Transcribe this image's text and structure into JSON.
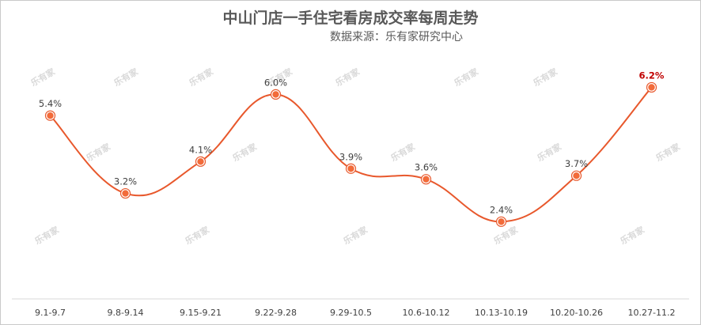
{
  "title": "中山门店一手住宅看房成交率每周走势",
  "subtitle": "数据来源：乐有家研究中心",
  "watermark": "乐有家",
  "colors": {
    "line": "#e8582c",
    "marker_fill": "#f26b3a",
    "highlight_label": "#c00000"
  },
  "chart_data": {
    "type": "line",
    "title": "中山门店一手住宅看房成交率每周走势",
    "subtitle": "数据来源：乐有家研究中心",
    "categories": [
      "9.1-9.7",
      "9.8-9.14",
      "9.15-9.21",
      "9.22-9.28",
      "9.29-10.5",
      "10.6-10.12",
      "10.13-10.19",
      "10.20-10.26",
      "10.27-11.2"
    ],
    "values": [
      5.4,
      3.2,
      4.1,
      6.0,
      3.9,
      3.6,
      2.4,
      3.7,
      6.2
    ],
    "value_labels": [
      "5.4%",
      "3.2%",
      "4.1%",
      "6.0%",
      "3.9%",
      "3.6%",
      "2.4%",
      "3.7%",
      "6.2%"
    ],
    "highlight_index": 8,
    "xlabel": "",
    "ylabel": "",
    "ylim": [
      0,
      7
    ],
    "grid": false,
    "legend": "none",
    "smooth": true
  }
}
